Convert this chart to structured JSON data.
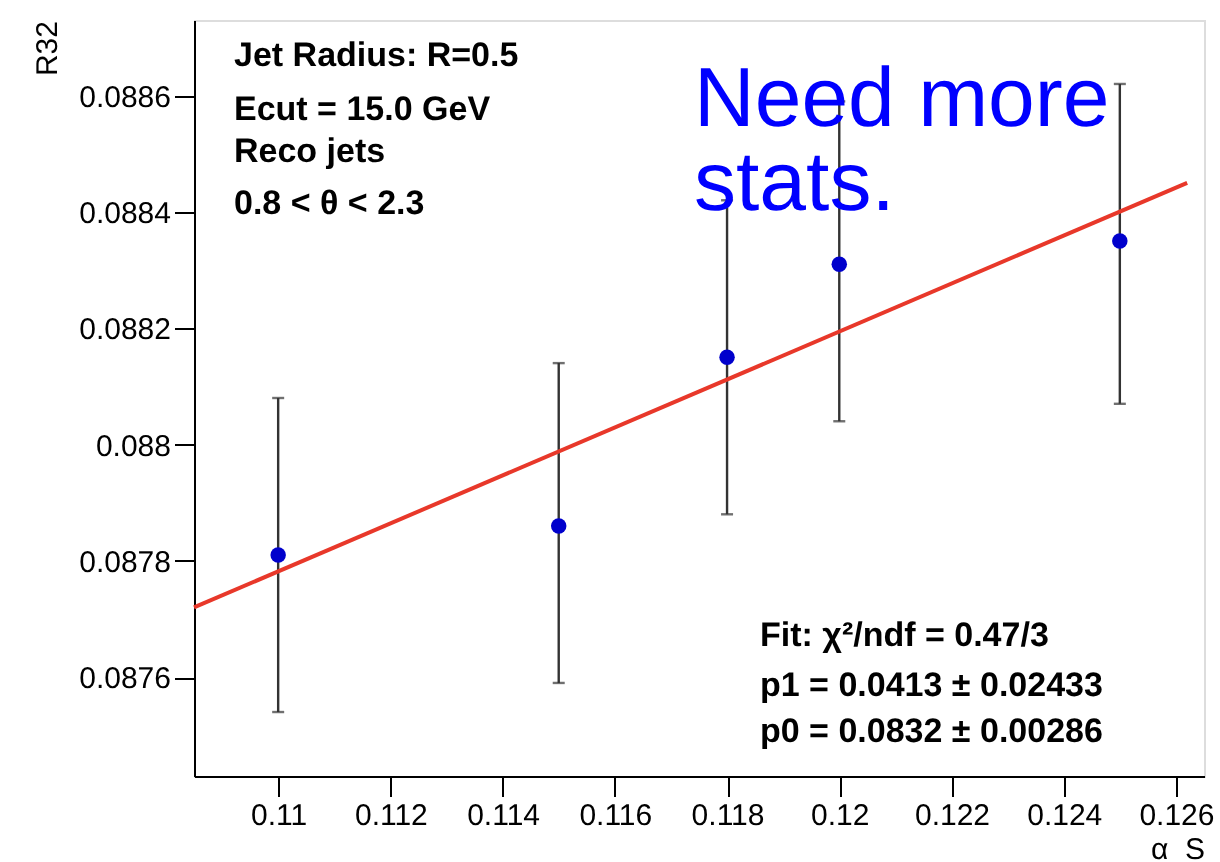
{
  "chart_data": {
    "type": "scatter",
    "xlabel": "α_S",
    "ylabel": "R32",
    "x": [
      0.11,
      0.115,
      0.118,
      0.12,
      0.125
    ],
    "series": [
      {
        "color": "#0000cc",
        "marker": "circle",
        "values": [
          0.08781,
          0.08786,
          0.08815,
          0.08831,
          0.08835
        ],
        "errors": [
          [
            0.08754,
            0.08808
          ],
          [
            0.08759,
            0.08814
          ],
          [
            0.08788,
            0.08842
          ],
          [
            0.08804,
            0.08859
          ],
          [
            0.08807,
            0.08862
          ]
        ]
      },
      {
        "type": "line",
        "color": "#e8382a",
        "line_style": "solid",
        "x": [
          0.1085,
          0.1262
        ],
        "values": [
          0.08772,
          0.08845
        ]
      }
    ],
    "xlim": [
      0.1085,
      0.1265
    ],
    "ylim": [
      0.08743,
      0.08873
    ],
    "xticks": [
      0.11,
      0.112,
      0.114,
      0.116,
      0.118,
      0.12,
      0.122,
      0.124,
      0.126
    ],
    "yticks": [
      0.0876,
      0.0878,
      0.088,
      0.0882,
      0.0884,
      0.0886
    ],
    "grid": false,
    "annotations": [
      "Jet Radius: R=0.5",
      "Ecut = 15.0 GeV",
      "Reco jets",
      " 0.8 < θ < 2.3",
      "Need more stats.",
      "Fit: χ²/ndf = 0.47/3",
      "p1 = 0.0413 ± 0.02433",
      "p0 = 0.0832 ± 0.00286"
    ]
  }
}
